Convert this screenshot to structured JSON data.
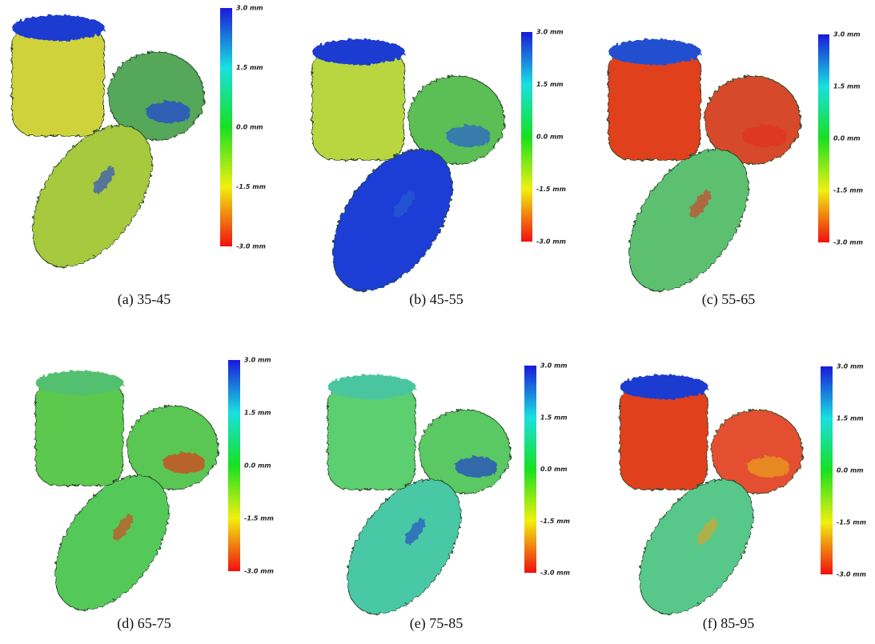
{
  "panels": [
    {
      "caption": "(a) 35-45"
    },
    {
      "caption": "(b) 45-55"
    },
    {
      "caption": "(c) 55-65"
    },
    {
      "caption": "(d) 65-75"
    },
    {
      "caption": "(e) 75-85"
    },
    {
      "caption": "(f) 85-95"
    }
  ],
  "colorbar": {
    "labels": [
      "3.0 mm",
      "1.5 mm",
      "0.0 mm",
      "-1.5 mm",
      "-3.0 mm"
    ]
  }
}
